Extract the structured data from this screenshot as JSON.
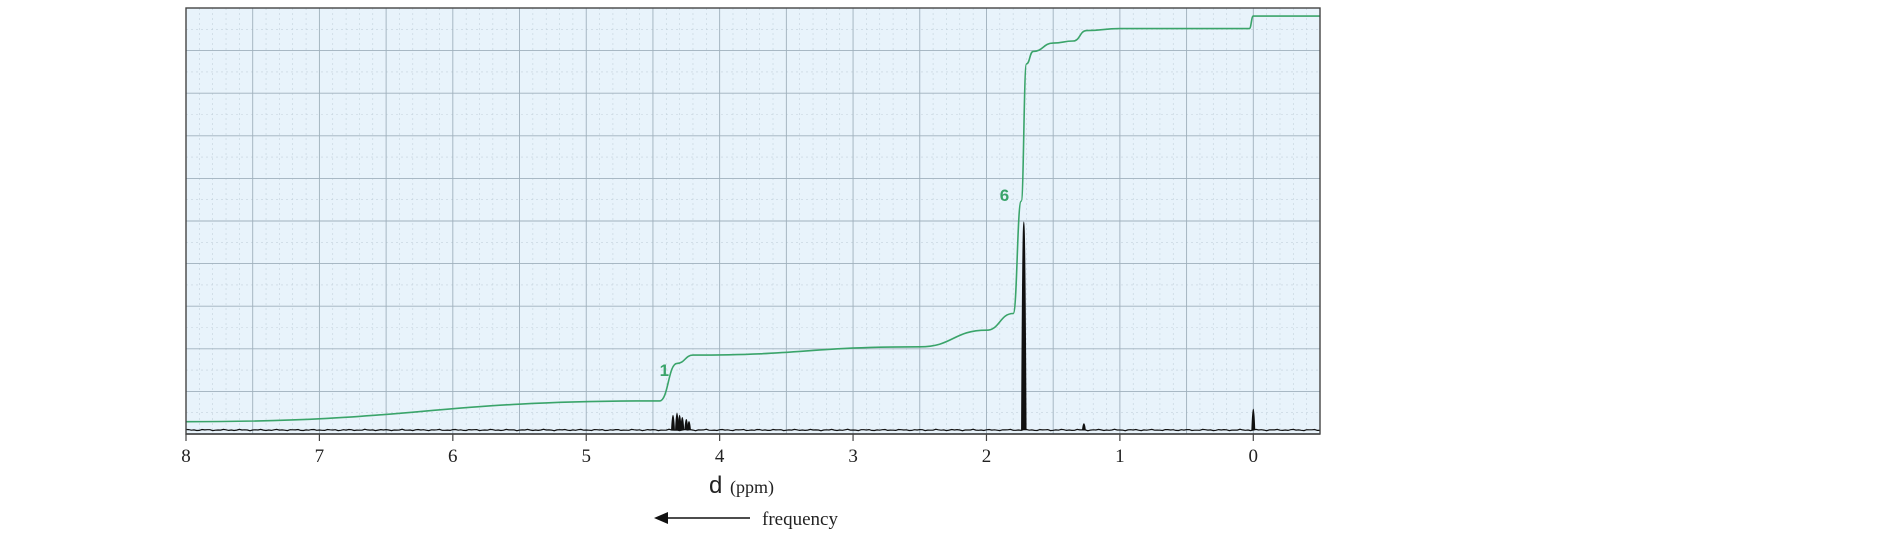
{
  "chart_data": {
    "type": "line",
    "xlim": [
      8,
      -0.5
    ],
    "x_ticks": [
      8,
      7,
      6,
      5,
      4,
      3,
      2,
      1,
      0
    ],
    "x_tick_labels": [
      "8",
      "7",
      "6",
      "5",
      "4",
      "3",
      "2",
      "1",
      "0"
    ],
    "xlabel_symbol": "d",
    "xlabel_unit": "(ppm)",
    "direction_label": "frequency",
    "grid": true,
    "colors": {
      "plot_background": "#e8f3fb",
      "grid_major": "#9fb0bc",
      "grid_minor": "#c3d2dc",
      "spectrum": "#111111",
      "integral": "#3aa46a"
    },
    "peaks": [
      {
        "ppm": 4.35,
        "height": 0.07
      },
      {
        "ppm": 4.32,
        "height": 0.08
      },
      {
        "ppm": 4.3,
        "height": 0.07
      },
      {
        "ppm": 4.28,
        "height": 0.06
      },
      {
        "ppm": 4.25,
        "height": 0.05
      },
      {
        "ppm": 4.23,
        "height": 0.04
      },
      {
        "ppm": 1.72,
        "height": 1.0
      },
      {
        "ppm": 1.27,
        "height": 0.03
      },
      {
        "ppm": 0.0,
        "height": 0.1
      }
    ],
    "integral_labels": [
      {
        "text": "1",
        "ppm": 4.45,
        "level": 0.13
      },
      {
        "text": "6",
        "ppm": 1.9,
        "level": 0.55
      }
    ],
    "integral_curve": {
      "ppm": [
        8.0,
        4.45,
        4.32,
        4.2,
        2.5,
        2.0,
        1.8,
        1.74,
        1.7,
        1.65,
        1.5,
        1.35,
        1.25,
        1.0,
        0.03,
        0.0,
        -0.5
      ],
      "level": [
        0.02,
        0.07,
        0.16,
        0.18,
        0.2,
        0.24,
        0.28,
        0.55,
        0.88,
        0.91,
        0.93,
        0.935,
        0.96,
        0.965,
        0.965,
        0.995,
        0.995
      ]
    }
  }
}
